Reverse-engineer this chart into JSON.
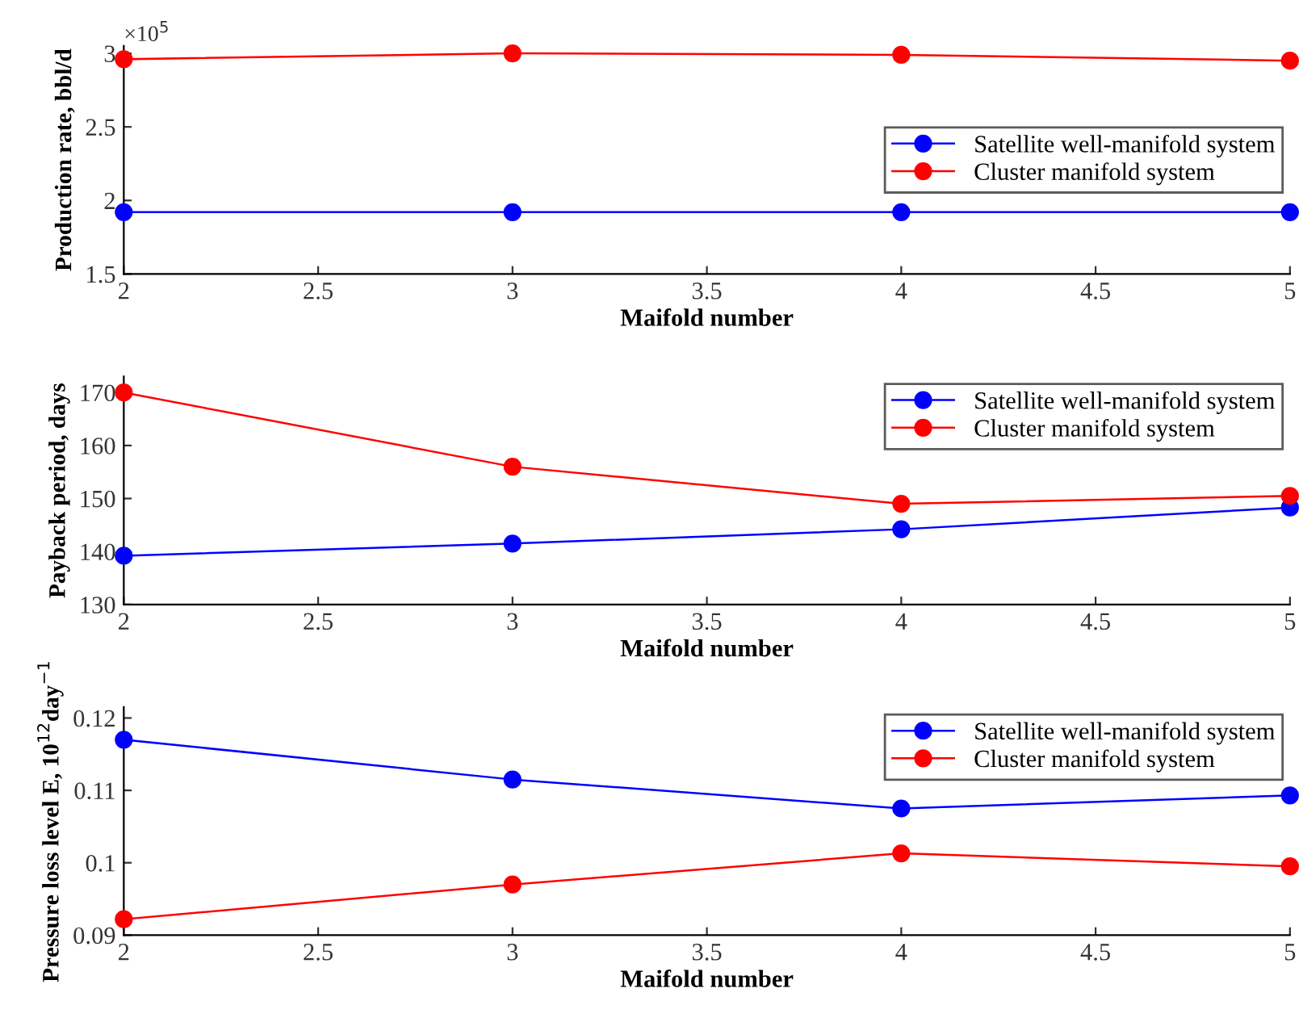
{
  "chart_data": [
    {
      "type": "line",
      "x": [
        2,
        3,
        4,
        5
      ],
      "xlabel": "Maifold number",
      "ylabel": "Production rate, bbl/d",
      "xlim": [
        2,
        5
      ],
      "xticks": [
        2,
        2.5,
        3,
        3.5,
        4,
        4.5,
        5
      ],
      "ylim": [
        1.5,
        3.05
      ],
      "yticks": [
        1.5,
        2,
        2.5,
        3
      ],
      "annotations": [
        "×10$^{5}$"
      ],
      "legend": "right",
      "marker": "circle",
      "grid": false,
      "series": [
        {
          "name": "Satellite well-manifold system",
          "color": "#0000ff",
          "values": [
            1.92,
            1.92,
            1.92,
            1.92
          ]
        },
        {
          "name": "Cluster manifold system",
          "color": "#ff0000",
          "values": [
            2.96,
            3.0,
            2.99,
            2.95
          ]
        }
      ]
    },
    {
      "type": "line",
      "x": [
        2,
        3,
        4,
        5
      ],
      "xlabel": "Maifold number",
      "ylabel": "Payback period, days",
      "xlim": [
        2,
        5
      ],
      "xticks": [
        2,
        2.5,
        3,
        3.5,
        4,
        4.5,
        5
      ],
      "ylim": [
        130,
        173
      ],
      "yticks": [
        130,
        140,
        150,
        160,
        170
      ],
      "legend": "top right",
      "marker": "circle",
      "grid": false,
      "series": [
        {
          "name": "Satellite well-manifold system",
          "color": "#0000ff",
          "values": [
            139.2,
            141.5,
            144.2,
            148.3
          ]
        },
        {
          "name": "Cluster manifold system",
          "color": "#ff0000",
          "values": [
            170,
            156,
            149,
            150.5
          ]
        }
      ]
    },
    {
      "type": "line",
      "x": [
        2,
        3,
        4,
        5
      ],
      "xlabel": "Maifold number",
      "ylabel": "Pressure loss level E, 10$^{12}$day$^{−1}$",
      "xlim": [
        2,
        5
      ],
      "xticks": [
        2,
        2.5,
        3,
        3.5,
        4,
        4.5,
        5
      ],
      "ylim": [
        0.09,
        0.1215
      ],
      "yticks": [
        0.09,
        0.1,
        0.11,
        0.12
      ],
      "legend": "top right",
      "marker": "circle",
      "grid": false,
      "series": [
        {
          "name": "Satellite well-manifold system",
          "color": "#0000ff",
          "values": [
            0.117,
            0.1115,
            0.1075,
            0.1093
          ]
        },
        {
          "name": "Cluster manifold system",
          "color": "#ff0000",
          "values": [
            0.0922,
            0.097,
            0.1013,
            0.0995
          ]
        }
      ]
    }
  ]
}
